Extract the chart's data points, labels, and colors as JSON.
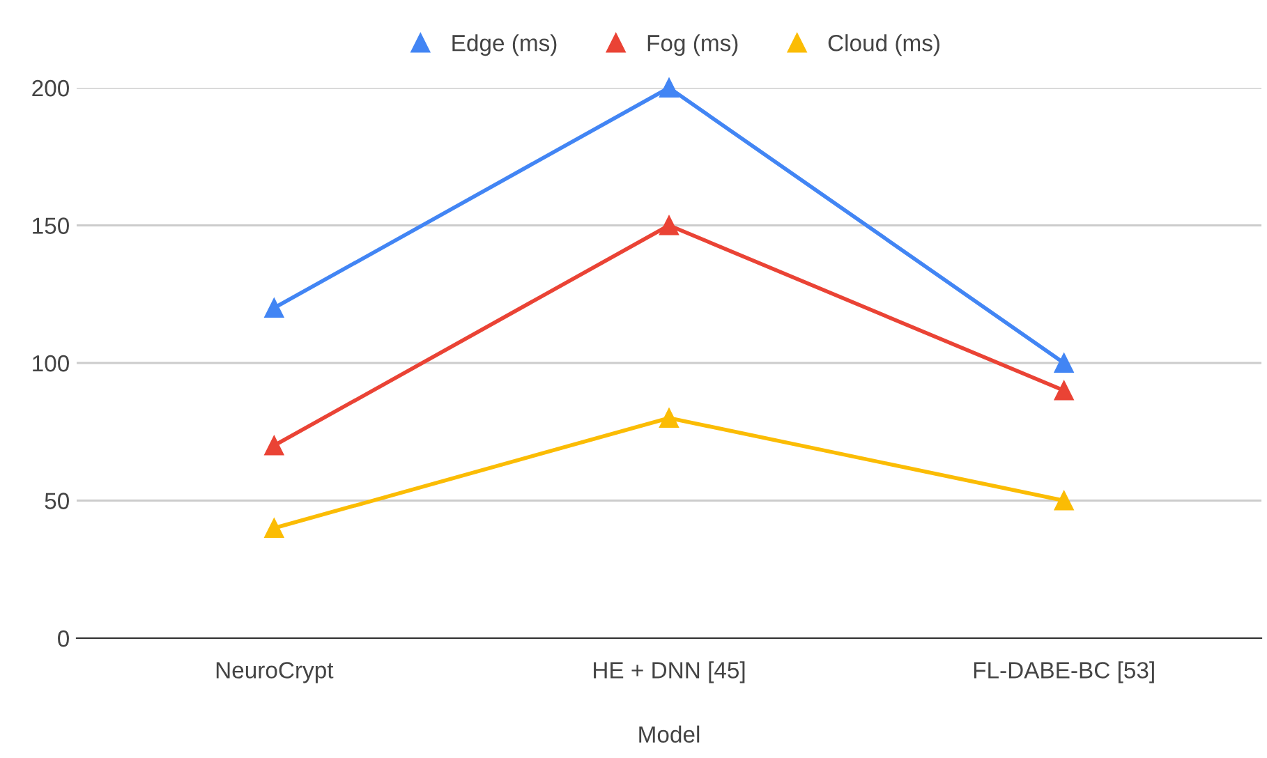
{
  "chart_data": {
    "type": "line",
    "xlabel": "Model",
    "categories": [
      "NeuroCrypt",
      "HE + DNN [45]",
      "FL-DABE-BC [53]"
    ],
    "series": [
      {
        "name": "Edge (ms)",
        "color": "#4285f4",
        "values": [
          120,
          200,
          100
        ]
      },
      {
        "name": "Fog (ms)",
        "color": "#ea4335",
        "values": [
          70,
          150,
          90
        ]
      },
      {
        "name": "Cloud (ms)",
        "color": "#fbbc04",
        "values": [
          40,
          80,
          50
        ]
      }
    ],
    "ylim": [
      0,
      200
    ],
    "yticks": [
      0,
      50,
      100,
      150,
      200
    ],
    "grid": "y",
    "legend": "top",
    "marker": "triangle",
    "line_style": "solid"
  }
}
